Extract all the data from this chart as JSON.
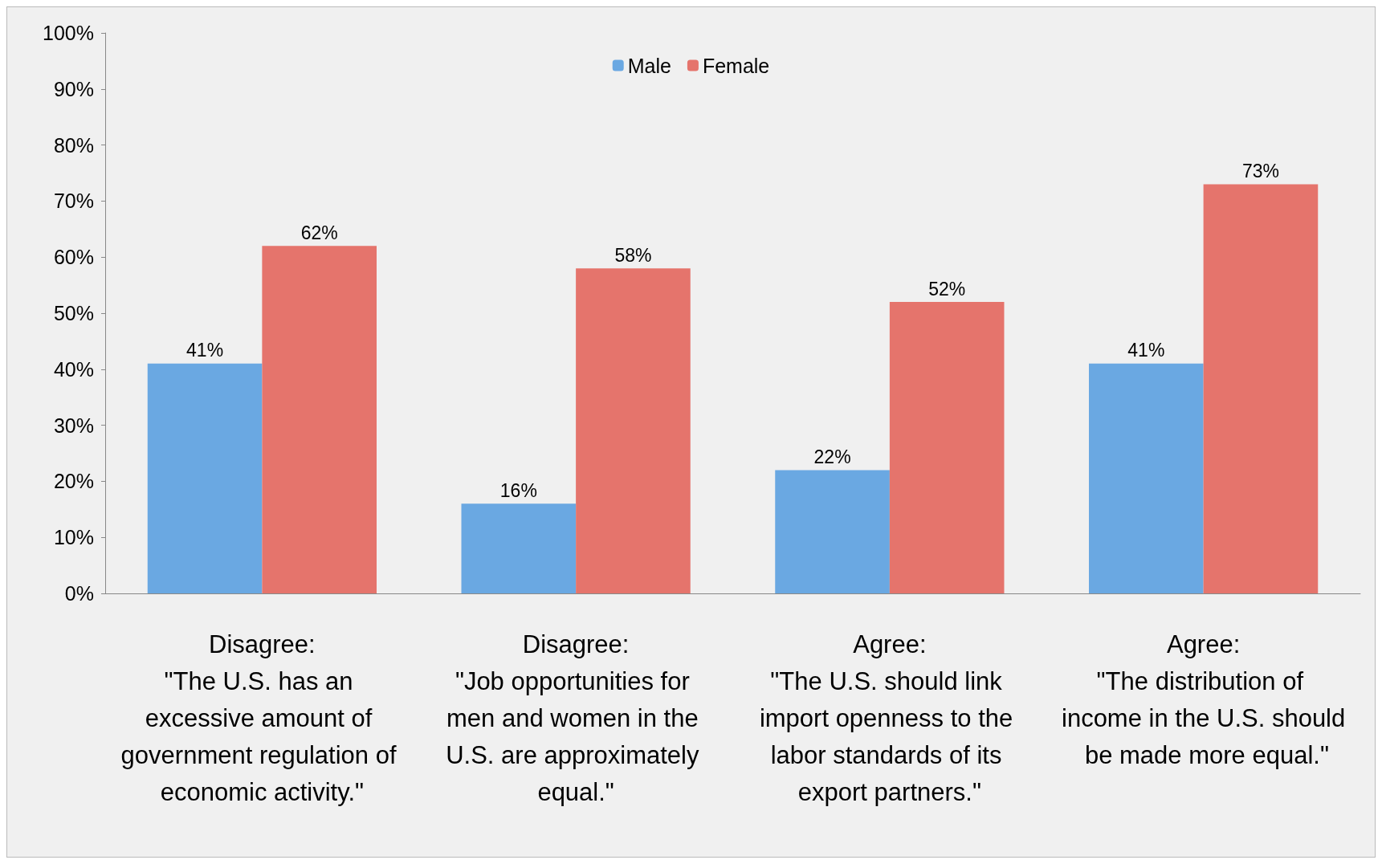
{
  "chart_data": {
    "type": "bar",
    "categories": [
      "Disagree:\n\"The U.S. has an excessive amount of government regulation of economic activity.\"",
      "Disagree:\n\"Job opportunities for men and women in the U.S. are approximately equal.\"",
      "Agree:\n\"The U.S. should link import openness to the labor standards of its export partners.\"",
      "Agree:\n\"The distribution of income in the U.S. should be made more equal.\""
    ],
    "series": [
      {
        "name": "Male",
        "color": "#6aa8e2",
        "values": [
          41,
          16,
          22,
          41
        ]
      },
      {
        "name": "Female",
        "color": "#e5746c",
        "values": [
          62,
          58,
          52,
          73
        ]
      }
    ],
    "ylim": [
      0,
      100
    ],
    "yticks": [
      {
        "value": 0,
        "label": "0%"
      },
      {
        "value": 10,
        "label": "10%"
      },
      {
        "value": 20,
        "label": "20%"
      },
      {
        "value": 30,
        "label": "30%"
      },
      {
        "value": 40,
        "label": "40%"
      },
      {
        "value": 50,
        "label": "50%"
      },
      {
        "value": 60,
        "label": "60%"
      },
      {
        "value": 70,
        "label": "70%"
      },
      {
        "value": 80,
        "label": "80%"
      },
      {
        "value": 90,
        "label": "90%"
      },
      {
        "value": 100,
        "label": "100%"
      }
    ],
    "value_labels": [
      [
        "41%",
        "16%",
        "22%",
        "41%"
      ],
      [
        "62%",
        "58%",
        "52%",
        "73%"
      ]
    ],
    "grid": false,
    "legend": "top"
  }
}
